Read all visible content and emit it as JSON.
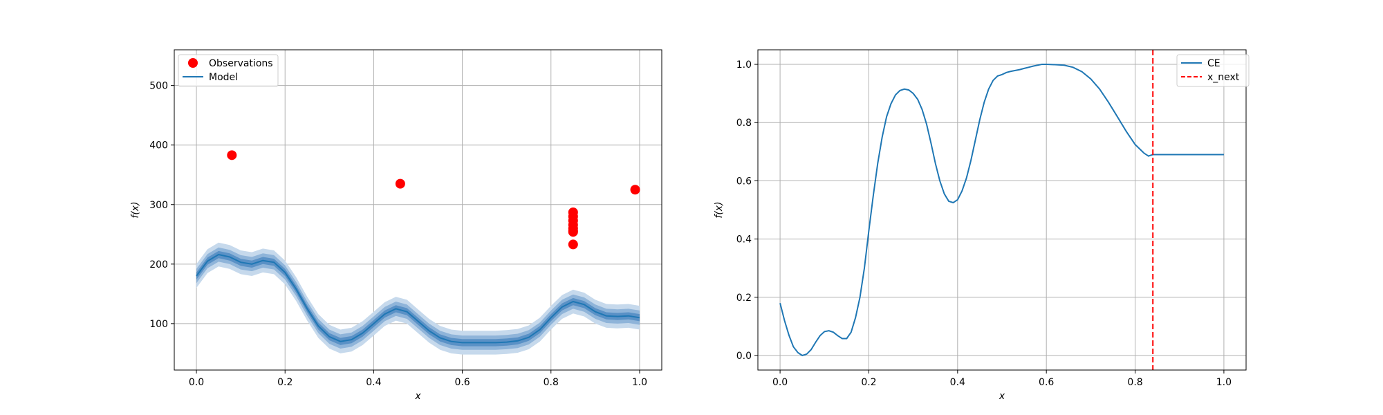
{
  "chart_data": [
    {
      "type": "line",
      "panel": "left",
      "xlabel": "x",
      "ylabel": "f(x)",
      "xlim": [
        -0.05,
        1.05
      ],
      "ylim": [
        22,
        560
      ],
      "xticks": [
        "0.0",
        "0.2",
        "0.4",
        "0.6",
        "0.8",
        "1.0"
      ],
      "xtick_values": [
        0,
        0.2,
        0.4,
        0.6,
        0.8,
        1.0
      ],
      "yticks": [
        "100",
        "200",
        "300",
        "400",
        "500"
      ],
      "ytick_values": [
        100,
        200,
        300,
        400,
        500
      ],
      "grid": true,
      "legend_position": "upper-left",
      "colors": {
        "model": "#1f77b4",
        "observations": "#ff0000",
        "band_outer": "#c6d9ec",
        "band_mid": "#8fb4d9",
        "band_inner": "#5a91c6"
      },
      "series": [
        {
          "name": "Model",
          "kind": "line",
          "x": [
            0.0,
            0.025,
            0.05,
            0.075,
            0.1,
            0.125,
            0.15,
            0.175,
            0.2,
            0.225,
            0.25,
            0.275,
            0.3,
            0.325,
            0.35,
            0.375,
            0.4,
            0.425,
            0.45,
            0.475,
            0.5,
            0.525,
            0.55,
            0.575,
            0.6,
            0.625,
            0.65,
            0.675,
            0.7,
            0.725,
            0.75,
            0.775,
            0.8,
            0.825,
            0.85,
            0.875,
            0.9,
            0.925,
            0.95,
            0.975,
            1.0
          ],
          "y": [
            180,
            205,
            216,
            212,
            203,
            200,
            206,
            203,
            186,
            158,
            125,
            96,
            78,
            70,
            73,
            84,
            100,
            116,
            125,
            120,
            104,
            88,
            76,
            70,
            68,
            68,
            68,
            68,
            69,
            71,
            77,
            90,
            110,
            128,
            137,
            132,
            120,
            113,
            112,
            113,
            110
          ],
          "band_halfwidths": {
            "inner": 6,
            "mid": 12,
            "outer": 20
          }
        },
        {
          "name": "Observations",
          "kind": "scatter",
          "x": [
            0.08,
            0.46,
            0.99,
            0.85,
            0.85,
            0.85,
            0.85,
            0.85,
            0.85,
            0.85,
            0.85
          ],
          "y": [
            383,
            335,
            325,
            287,
            280,
            273,
            266,
            260,
            254,
            256,
            233
          ]
        }
      ],
      "legend": [
        {
          "label": "Observations",
          "marker": "circle"
        },
        {
          "label": "Model",
          "marker": "line"
        }
      ]
    },
    {
      "type": "line",
      "panel": "right",
      "xlabel": "x",
      "ylabel": "f(x)",
      "xlim": [
        -0.05,
        1.05
      ],
      "ylim": [
        -0.05,
        1.05
      ],
      "xticks": [
        "0.0",
        "0.2",
        "0.4",
        "0.6",
        "0.8",
        "1.0"
      ],
      "xtick_values": [
        0,
        0.2,
        0.4,
        0.6,
        0.8,
        1.0
      ],
      "yticks": [
        "0.0",
        "0.2",
        "0.4",
        "0.6",
        "0.8",
        "1.0"
      ],
      "ytick_values": [
        0,
        0.2,
        0.4,
        0.6,
        0.8,
        1.0
      ],
      "grid": true,
      "legend_position": "upper-right",
      "colors": {
        "ce": "#1f77b4",
        "x_next": "#ff0000"
      },
      "series": [
        {
          "name": "CE",
          "kind": "line",
          "x": [
            0.0,
            0.01,
            0.02,
            0.03,
            0.04,
            0.05,
            0.06,
            0.07,
            0.08,
            0.09,
            0.1,
            0.11,
            0.12,
            0.13,
            0.14,
            0.15,
            0.16,
            0.17,
            0.18,
            0.19,
            0.2,
            0.21,
            0.22,
            0.23,
            0.24,
            0.25,
            0.26,
            0.27,
            0.28,
            0.29,
            0.3,
            0.31,
            0.32,
            0.33,
            0.34,
            0.35,
            0.36,
            0.37,
            0.38,
            0.39,
            0.4,
            0.41,
            0.42,
            0.43,
            0.44,
            0.45,
            0.46,
            0.47,
            0.48,
            0.49,
            0.5,
            0.51,
            0.52,
            0.53,
            0.54,
            0.55,
            0.56,
            0.57,
            0.58,
            0.59,
            0.6,
            0.62,
            0.64,
            0.66,
            0.68,
            0.7,
            0.72,
            0.74,
            0.76,
            0.78,
            0.8,
            0.82,
            0.83,
            0.84,
            0.85,
            0.86,
            0.87,
            0.88,
            0.89,
            0.9,
            0.91,
            0.92,
            0.93,
            0.94,
            0.95,
            0.96,
            0.97,
            0.98,
            0.99,
            1.0
          ],
          "y": [
            0.18,
            0.12,
            0.07,
            0.03,
            0.01,
            0.0,
            0.005,
            0.02,
            0.045,
            0.068,
            0.082,
            0.085,
            0.08,
            0.068,
            0.058,
            0.058,
            0.08,
            0.13,
            0.2,
            0.3,
            0.43,
            0.55,
            0.66,
            0.75,
            0.82,
            0.865,
            0.895,
            0.91,
            0.915,
            0.912,
            0.9,
            0.88,
            0.845,
            0.795,
            0.73,
            0.66,
            0.6,
            0.555,
            0.53,
            0.525,
            0.535,
            0.565,
            0.61,
            0.67,
            0.74,
            0.81,
            0.87,
            0.915,
            0.945,
            0.96,
            0.965,
            0.972,
            0.976,
            0.979,
            0.982,
            0.986,
            0.99,
            0.994,
            0.997,
            1.0,
            1.0,
            0.999,
            0.997,
            0.99,
            0.975,
            0.95,
            0.915,
            0.87,
            0.82,
            0.77,
            0.725,
            0.695,
            0.685,
            0.69,
            0.69,
            0.69,
            0.69,
            0.69,
            0.69,
            0.69,
            0.69,
            0.69,
            0.69,
            0.69,
            0.69,
            0.69,
            0.69,
            0.69,
            0.69,
            0.69
          ]
        },
        {
          "name": "x_next",
          "kind": "vline",
          "x": 0.84
        }
      ],
      "legend": [
        {
          "label": "CE",
          "marker": "line"
        },
        {
          "label": "x_next",
          "marker": "dashed"
        }
      ]
    }
  ]
}
